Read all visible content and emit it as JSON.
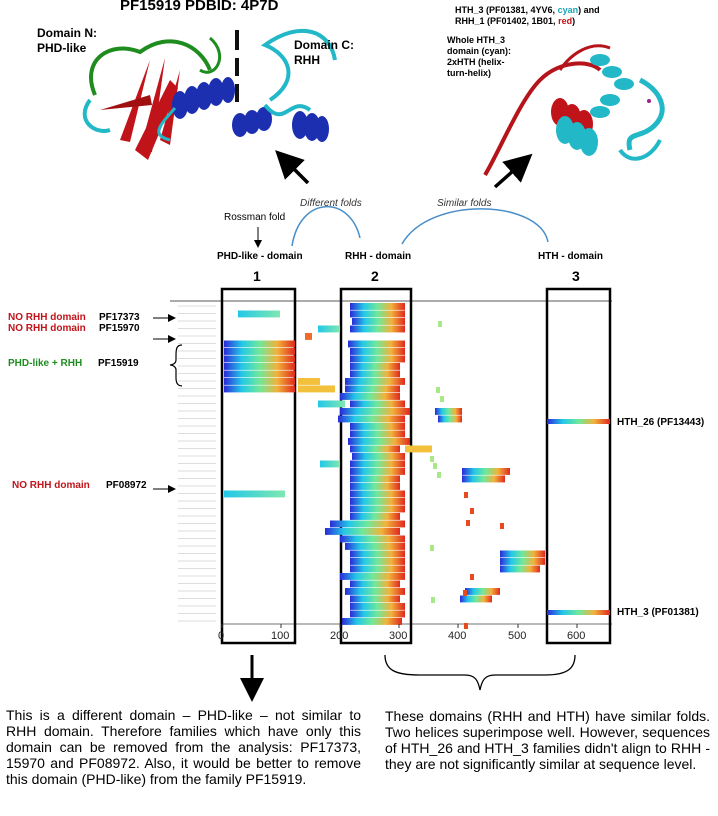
{
  "title": "PF15919 PDBID: 4P7D",
  "structure_left": {
    "domain_n": [
      "Domain N:",
      "PHD-like"
    ],
    "domain_c": [
      "Domain C:",
      "RHH"
    ]
  },
  "structure_right": {
    "caption_line1": "HTH_3 (PF01381, 4YV6, ",
    "caption_cyan": "cyan",
    "caption_line1_end": ") and",
    "caption_line2": "RHH_1 (PF01402, 1B01, ",
    "caption_red": "red",
    "caption_line2_end": ")",
    "whole": [
      "Whole HTH_3",
      "domain (cyan):",
      "2xHTH (helix-",
      "turn-helix)"
    ]
  },
  "fold_labels": {
    "different": "Different folds",
    "similar": "Similar folds",
    "rossman": "Rossman fold"
  },
  "domains": [
    {
      "header": "PHD-like - domain",
      "number": "1"
    },
    {
      "header": "RHH - domain",
      "number": "2"
    },
    {
      "header": "HTH - domain",
      "number": "3"
    }
  ],
  "left_annotations": {
    "no_rhh_1": "NO RHH domain",
    "pf1": "PF17373",
    "no_rhh_2": "NO RHH domain",
    "pf2": "PF15970",
    "phd_rhh": "PHD-like + RHH",
    "pf3": "PF15919",
    "no_rhh_3": "NO RHH domain",
    "pf4": "PF08972"
  },
  "right_annotations": {
    "hth26": "HTH_26 (PF13443)",
    "hth3": "HTH_3 (PF01381)"
  },
  "axis_ticks": [
    "0",
    "100",
    "200",
    "300",
    "400",
    "500",
    "600"
  ],
  "text_left": "This is a different domain – PHD-like – not similar to RHH domain. Therefore families which have only this domain can be removed from the analysis: PF17373, 15970 and PF08972. Also, it would be better to remove this domain (PHD-like) from the family PF15919.",
  "text_right": "These domains (RHH and HTH) have similar folds. Two helices superimpose well. However, sequences of HTH_26 and HTH_3 families didn't align to RHH - they are not significantly similar at sequence level.",
  "colors": {
    "red": "#c0141a",
    "green": "#1f8c1f",
    "cyan": "#1aa6b7",
    "blue": "#1b2fb0"
  }
}
